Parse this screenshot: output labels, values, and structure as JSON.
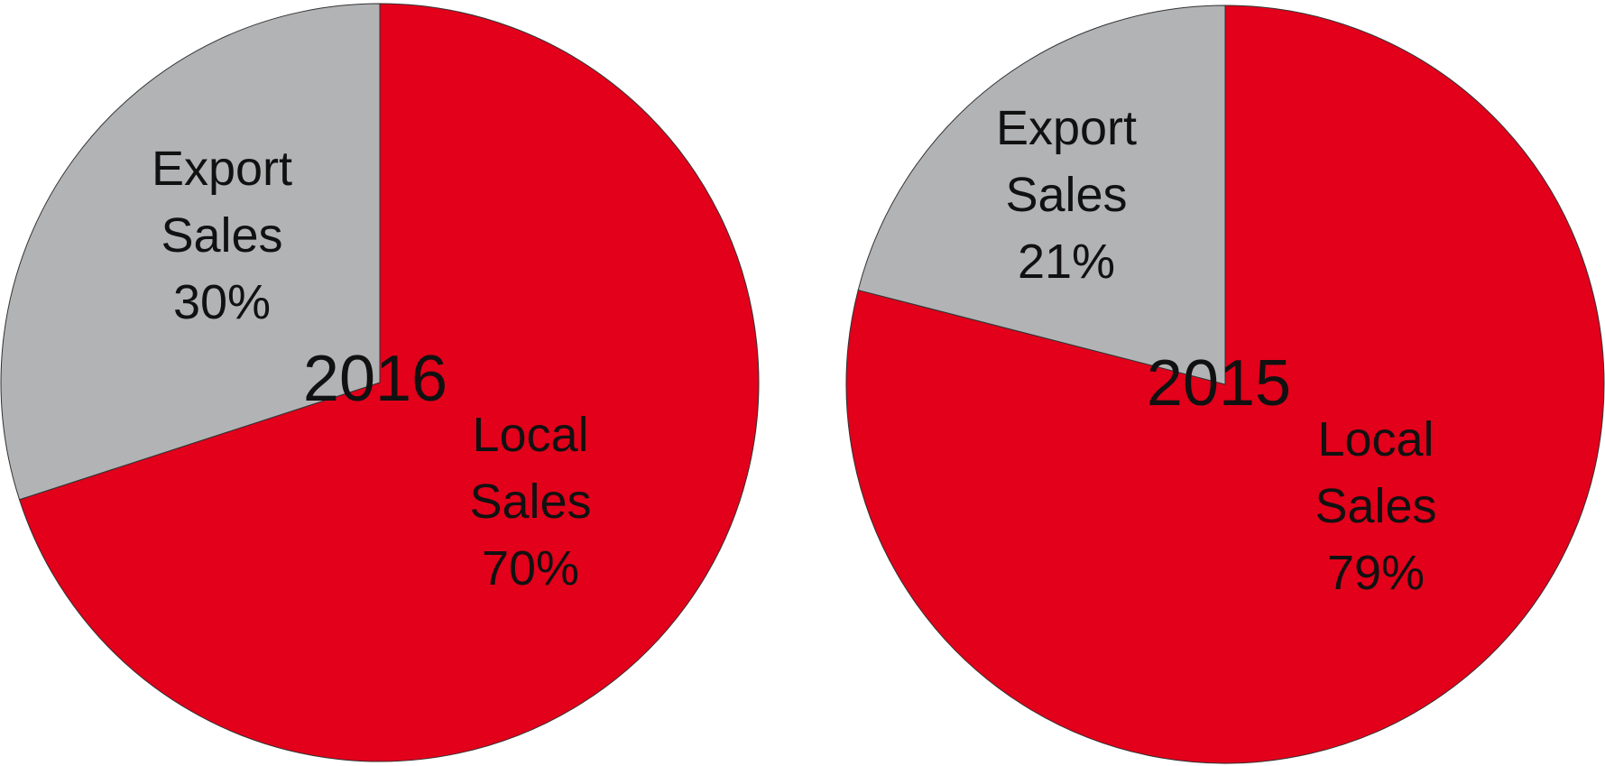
{
  "chart_data": [
    {
      "type": "pie",
      "center_label": "2016",
      "slices": [
        {
          "label_lines": [
            "Local",
            "Sales",
            "70%"
          ],
          "value": 70,
          "color": "#E2001A"
        },
        {
          "label_lines": [
            "Export",
            "Sales",
            "30%"
          ],
          "value": 30,
          "color": "#B2B3B5"
        }
      ]
    },
    {
      "type": "pie",
      "center_label": "2015",
      "slices": [
        {
          "label_lines": [
            "Local",
            "Sales",
            "79%"
          ],
          "value": 79,
          "color": "#E2001A"
        },
        {
          "label_lines": [
            "Export",
            "Sales",
            "21%"
          ],
          "value": 21,
          "color": "#B2B3B5"
        }
      ]
    }
  ]
}
